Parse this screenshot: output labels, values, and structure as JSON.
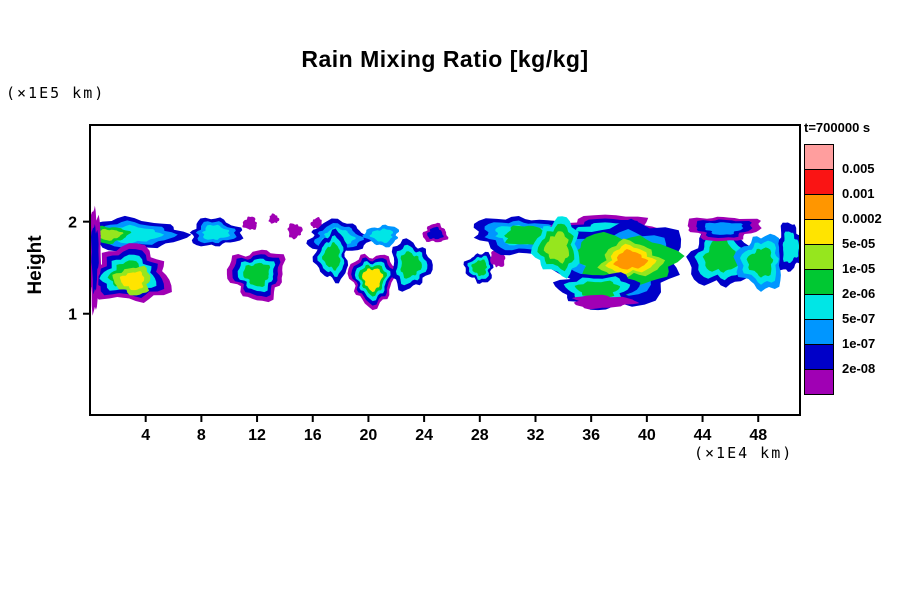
{
  "title": "Rain Mixing Ratio [kg/kg]",
  "y_axis_unit": "(×1E5 km)",
  "x_axis_unit": "(×1E4 km)",
  "y_axis_label": "Height",
  "legend": {
    "title": "t=700000 s",
    "labels": [
      "0.005",
      "0.001",
      "0.0002",
      "5e-05",
      "1e-05",
      "2e-06",
      "5e-07",
      "1e-07",
      "2e-08"
    ],
    "colors": [
      "#ff9e9e",
      "#fa1414",
      "#ff9600",
      "#ffe400",
      "#96e61e",
      "#00c832",
      "#00e6e6",
      "#0096ff",
      "#0000c8",
      "#a000b4"
    ]
  },
  "palette": {
    "purple": "#a000b4",
    "navy": "#0000c8",
    "blue": "#0096ff",
    "cyan": "#00e6e6",
    "green": "#00c832",
    "ygreen": "#96e61e",
    "yellow": "#ffe400",
    "orange": "#ff9600"
  },
  "chart_data": {
    "type": "heatmap",
    "subtype": "filled-contour",
    "title": "Rain Mixing Ratio [kg/kg]",
    "time_label": "t=700000 s",
    "xlabel": "(×1E4 km)",
    "ylabel": "Height (×1E5 km)",
    "xlim": [
      0,
      51
    ],
    "ylim": [
      -0.1,
      3.05
    ],
    "x_ticks": [
      4,
      8,
      12,
      16,
      20,
      24,
      28,
      32,
      36,
      40,
      44,
      48
    ],
    "y_ticks": [
      1,
      2
    ],
    "grid": false,
    "legend_position": "right",
    "contour_levels": [
      2e-08,
      1e-07,
      5e-07,
      2e-06,
      1e-05,
      5e-05,
      0.0002,
      0.001,
      0.005
    ],
    "colors_low_to_high": [
      "#a000b4",
      "#0000c8",
      "#0096ff",
      "#00e6e6",
      "#00c832",
      "#96e61e",
      "#ffe400",
      "#ff9600",
      "#fa1414",
      "#ff9e9e"
    ],
    "clouds": [
      {
        "cx": 3.2,
        "cy": 1.86,
        "rx": 3.3,
        "ry": 0.17,
        "seed": 1,
        "layers": [
          "navy",
          "blue",
          "cyan"
        ]
      },
      {
        "cx": 1.4,
        "cy": 1.86,
        "rx": 1.3,
        "ry": 0.09,
        "seed": 30,
        "layers": [
          "green",
          "ygreen"
        ]
      },
      {
        "cx": 2.8,
        "cy": 1.42,
        "rx": 2.9,
        "ry": 0.3,
        "seed": 2,
        "layers": [
          "purple",
          "navy",
          "cyan",
          "green"
        ]
      },
      {
        "cx": 3.1,
        "cy": 1.36,
        "rx": 1.3,
        "ry": 0.15,
        "seed": 3,
        "layers": [
          "ygreen",
          "yellow"
        ]
      },
      {
        "cx": 0.35,
        "cy": 1.62,
        "rx": 0.4,
        "ry": 0.55,
        "seed": 4,
        "layers": [
          "purple",
          "navy"
        ]
      },
      {
        "cx": 9.0,
        "cy": 1.88,
        "rx": 1.8,
        "ry": 0.15,
        "seed": 5,
        "layers": [
          "navy",
          "blue",
          "cyan"
        ]
      },
      {
        "cx": 11.5,
        "cy": 1.98,
        "rx": 0.5,
        "ry": 0.07,
        "seed": 6,
        "layers": [
          "purple"
        ]
      },
      {
        "cx": 12.0,
        "cy": 1.43,
        "rx": 2.0,
        "ry": 0.27,
        "seed": 7,
        "layers": [
          "purple",
          "navy",
          "cyan",
          "green"
        ]
      },
      {
        "cx": 14.7,
        "cy": 1.9,
        "rx": 0.5,
        "ry": 0.08,
        "seed": 8,
        "layers": [
          "purple"
        ]
      },
      {
        "cx": 13.2,
        "cy": 2.03,
        "rx": 0.35,
        "ry": 0.05,
        "seed": 31,
        "layers": [
          "purple"
        ]
      },
      {
        "cx": 16.3,
        "cy": 1.98,
        "rx": 0.4,
        "ry": 0.06,
        "seed": 32,
        "layers": [
          "purple"
        ]
      },
      {
        "cx": 17.8,
        "cy": 1.83,
        "rx": 2.1,
        "ry": 0.17,
        "seed": 9,
        "layers": [
          "navy",
          "blue",
          "cyan"
        ]
      },
      {
        "cx": 17.4,
        "cy": 1.62,
        "rx": 1.15,
        "ry": 0.26,
        "seed": 10,
        "layers": [
          "navy",
          "cyan",
          "green"
        ]
      },
      {
        "cx": 20.3,
        "cy": 1.38,
        "rx": 1.6,
        "ry": 0.28,
        "seed": 11,
        "layers": [
          "purple",
          "navy",
          "cyan",
          "green",
          "yellow"
        ]
      },
      {
        "cx": 23.0,
        "cy": 1.53,
        "rx": 1.4,
        "ry": 0.26,
        "seed": 12,
        "layers": [
          "navy",
          "cyan",
          "green"
        ]
      },
      {
        "cx": 21.0,
        "cy": 1.85,
        "rx": 1.2,
        "ry": 0.11,
        "seed": 29,
        "layers": [
          "blue",
          "cyan"
        ]
      },
      {
        "cx": 24.8,
        "cy": 1.87,
        "rx": 0.85,
        "ry": 0.1,
        "seed": 13,
        "layers": [
          "purple",
          "navy"
        ]
      },
      {
        "cx": 28.0,
        "cy": 1.5,
        "rx": 1.0,
        "ry": 0.16,
        "seed": 14,
        "layers": [
          "navy",
          "cyan",
          "green"
        ]
      },
      {
        "cx": 29.3,
        "cy": 1.62,
        "rx": 0.5,
        "ry": 0.12,
        "seed": 28,
        "layers": [
          "purple"
        ]
      },
      {
        "cx": 30.8,
        "cy": 1.86,
        "rx": 3.2,
        "ry": 0.2,
        "seed": 15,
        "layers": [
          "navy",
          "blue",
          "cyan"
        ]
      },
      {
        "cx": 31.5,
        "cy": 1.85,
        "rx": 1.8,
        "ry": 0.1,
        "seed": 16,
        "layers": [
          "green"
        ]
      },
      {
        "cx": 37.0,
        "cy": 1.9,
        "rx": 4.2,
        "ry": 0.16,
        "seed": 17,
        "layers": [
          "purple",
          "navy",
          "cyan"
        ]
      },
      {
        "cx": 38.0,
        "cy": 1.57,
        "rx": 4.6,
        "ry": 0.43,
        "seed": 18,
        "layers": [
          "navy",
          "blue",
          "cyan"
        ]
      },
      {
        "cx": 38.3,
        "cy": 1.56,
        "rx": 3.6,
        "ry": 0.31,
        "seed": 19,
        "layers": [
          "green"
        ]
      },
      {
        "cx": 38.8,
        "cy": 1.58,
        "rx": 2.1,
        "ry": 0.19,
        "seed": 20,
        "layers": [
          "ygreen",
          "yellow",
          "orange"
        ]
      },
      {
        "cx": 33.6,
        "cy": 1.72,
        "rx": 1.6,
        "ry": 0.3,
        "seed": 21,
        "layers": [
          "cyan",
          "green",
          "ygreen"
        ]
      },
      {
        "cx": 36.5,
        "cy": 1.26,
        "rx": 2.8,
        "ry": 0.19,
        "seed": 22,
        "layers": [
          "navy",
          "cyan",
          "green"
        ]
      },
      {
        "cx": 36.8,
        "cy": 1.13,
        "rx": 2.2,
        "ry": 0.07,
        "seed": 23,
        "layers": [
          "purple"
        ]
      },
      {
        "cx": 45.3,
        "cy": 1.62,
        "rx": 2.2,
        "ry": 0.34,
        "seed": 24,
        "layers": [
          "navy",
          "cyan",
          "green"
        ]
      },
      {
        "cx": 48.2,
        "cy": 1.56,
        "rx": 1.7,
        "ry": 0.29,
        "seed": 25,
        "layers": [
          "blue",
          "cyan",
          "green"
        ]
      },
      {
        "cx": 45.5,
        "cy": 1.93,
        "rx": 2.6,
        "ry": 0.13,
        "seed": 26,
        "layers": [
          "purple",
          "navy",
          "blue"
        ]
      },
      {
        "cx": 50.3,
        "cy": 1.72,
        "rx": 0.9,
        "ry": 0.26,
        "seed": 27,
        "layers": [
          "navy",
          "cyan"
        ]
      }
    ]
  }
}
